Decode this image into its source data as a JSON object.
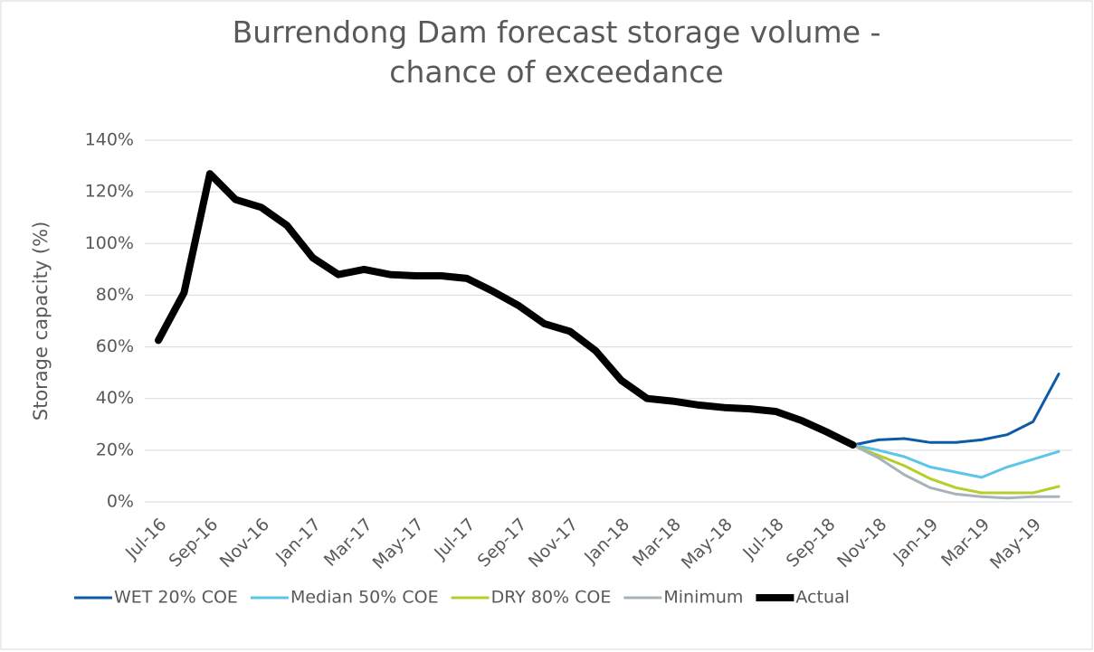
{
  "chart_data": {
    "type": "line",
    "title": "Burrendong Dam forecast storage volume - chance of exceedance",
    "y_label": "Storage capacity (%)",
    "categories": [
      "Jul-16",
      null,
      "Sep-16",
      null,
      "Nov-16",
      null,
      "Jan-17",
      null,
      "Mar-17",
      null,
      "May-17",
      null,
      "Jul-17",
      null,
      "Sep-17",
      null,
      "Nov-17",
      null,
      "Jan-18",
      null,
      "Mar-18",
      null,
      "May-18",
      null,
      "Jul-18",
      null,
      "Sep-18",
      null,
      "Nov-18",
      null,
      "Jan-19",
      null,
      "Mar-19",
      null,
      "May-19",
      null
    ],
    "series": [
      {
        "name": "WET 20% COE",
        "color": "#0f5aa6",
        "width": 3,
        "values": [
          null,
          null,
          null,
          null,
          null,
          null,
          null,
          null,
          null,
          null,
          null,
          null,
          null,
          null,
          null,
          null,
          null,
          null,
          null,
          null,
          null,
          null,
          null,
          null,
          null,
          null,
          null,
          22,
          24,
          24.5,
          23,
          23,
          24,
          26,
          31,
          49.5
        ]
      },
      {
        "name": "Median 50% COE",
        "color": "#5cc6e8",
        "width": 3,
        "values": [
          null,
          null,
          null,
          null,
          null,
          null,
          null,
          null,
          null,
          null,
          null,
          null,
          null,
          null,
          null,
          null,
          null,
          null,
          null,
          null,
          null,
          null,
          null,
          null,
          null,
          null,
          null,
          22,
          20,
          17.5,
          13.5,
          11.5,
          9.5,
          13.5,
          16.5,
          19.5
        ]
      },
      {
        "name": "DRY 80% COE",
        "color": "#b6cd2c",
        "width": 3,
        "values": [
          null,
          null,
          null,
          null,
          null,
          null,
          null,
          null,
          null,
          null,
          null,
          null,
          null,
          null,
          null,
          null,
          null,
          null,
          null,
          null,
          null,
          null,
          null,
          null,
          null,
          null,
          null,
          22,
          18,
          14,
          9,
          5.5,
          3.5,
          3.5,
          3.5,
          6
        ]
      },
      {
        "name": "Minimum",
        "color": "#a8b3b9",
        "width": 3,
        "values": [
          null,
          null,
          null,
          null,
          null,
          null,
          null,
          null,
          null,
          null,
          null,
          null,
          null,
          null,
          null,
          null,
          null,
          null,
          null,
          null,
          null,
          null,
          null,
          null,
          null,
          null,
          null,
          22,
          17,
          10.5,
          5.5,
          3,
          2,
          1.5,
          2,
          2
        ]
      },
      {
        "name": "Actual",
        "color": "#000000",
        "width": 8,
        "values": [
          62.5,
          81,
          127,
          117,
          114,
          107,
          94.5,
          88,
          90,
          88,
          87.5,
          87.5,
          86.5,
          81.5,
          76,
          69,
          66,
          58.5,
          47,
          40,
          39,
          37.5,
          36.5,
          36,
          35,
          31.5,
          27,
          22,
          null,
          null,
          null,
          null,
          null,
          null,
          null,
          null
        ]
      }
    ],
    "ylim": [
      0,
      140
    ],
    "yticks": [
      {
        "value": 0,
        "label": "0%"
      },
      {
        "value": 20,
        "label": "20%"
      },
      {
        "value": 40,
        "label": "40%"
      },
      {
        "value": 60,
        "label": "60%"
      },
      {
        "value": 80,
        "label": "80%"
      },
      {
        "value": 100,
        "label": "100%"
      },
      {
        "value": 120,
        "label": "120%"
      },
      {
        "value": 140,
        "label": "140%"
      }
    ],
    "grid": true,
    "legend": "bottom"
  }
}
